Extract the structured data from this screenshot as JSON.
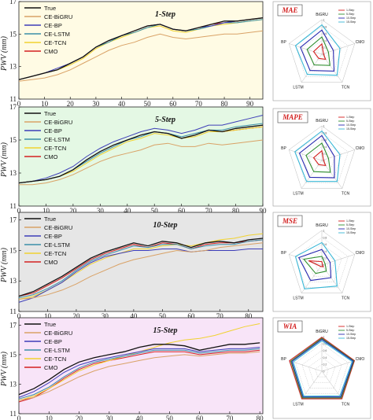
{
  "colors": {
    "True": "#111111",
    "CE-BiGRU": "#d9a266",
    "CE-BP": "#3d3db8",
    "CE-LSTM": "#3a8fa8",
    "CE-TCN": "#f0d230",
    "CMO": "#d42020",
    "panel_bg": [
      "#fffbe4",
      "#e4f8e4",
      "#e6e6e6",
      "#f8e4f8"
    ],
    "radar_1": "#d42020",
    "radar_5": "#2f8f2f",
    "radar_10": "#2a2ab0",
    "radar_15": "#39b7d6"
  },
  "chart_data": [
    {
      "type": "line",
      "title": "1-Step",
      "ylabel": "PWV (mm)",
      "xlim": [
        0,
        95
      ],
      "ylim": [
        11,
        17
      ],
      "xticks": [
        0,
        10,
        20,
        30,
        40,
        50,
        60,
        70,
        80,
        90
      ],
      "yticks": [
        11,
        13,
        15,
        17
      ],
      "legend": [
        "True",
        "CE-BiGRU",
        "CE-BP",
        "CE-LSTM",
        "CE-TCN",
        "CMO"
      ],
      "x": [
        0,
        5,
        10,
        15,
        20,
        25,
        30,
        35,
        40,
        45,
        50,
        55,
        60,
        65,
        70,
        75,
        80,
        85,
        90,
        95
      ],
      "series": [
        {
          "name": "True",
          "values": [
            12.2,
            12.4,
            12.6,
            12.8,
            13.2,
            13.6,
            14.2,
            14.6,
            14.9,
            15.2,
            15.5,
            15.6,
            15.3,
            15.2,
            15.4,
            15.6,
            15.8,
            15.8,
            15.9,
            16.0
          ]
        },
        {
          "name": "CE-BiGRU",
          "values": [
            12.1,
            12.2,
            12.3,
            12.5,
            12.8,
            13.2,
            13.6,
            14.0,
            14.3,
            14.5,
            14.8,
            15.0,
            14.8,
            14.7,
            14.8,
            14.9,
            15.0,
            15.0,
            15.1,
            15.2
          ]
        },
        {
          "name": "CE-BP",
          "values": [
            12.2,
            12.4,
            12.6,
            12.9,
            13.2,
            13.6,
            14.2,
            14.6,
            14.9,
            15.2,
            15.5,
            15.6,
            15.3,
            15.2,
            15.4,
            15.5,
            15.7,
            15.8,
            15.9,
            16.0
          ]
        },
        {
          "name": "CE-LSTM",
          "values": [
            12.2,
            12.4,
            12.6,
            12.8,
            13.2,
            13.6,
            14.2,
            14.5,
            14.9,
            15.1,
            15.4,
            15.6,
            15.3,
            15.2,
            15.3,
            15.5,
            15.7,
            15.7,
            15.8,
            15.9
          ]
        },
        {
          "name": "CE-TCN",
          "values": [
            12.2,
            12.4,
            12.6,
            12.8,
            13.1,
            13.5,
            14.1,
            14.5,
            14.8,
            15.1,
            15.4,
            15.5,
            15.2,
            15.1,
            15.3,
            15.5,
            15.6,
            15.7,
            15.8,
            15.9
          ]
        },
        {
          "name": "CMO",
          "values": [
            12.2,
            12.4,
            12.6,
            12.8,
            13.2,
            13.6,
            14.2,
            14.6,
            14.9,
            15.2,
            15.5,
            15.6,
            15.3,
            15.2,
            15.4,
            15.6,
            15.7,
            15.8,
            15.9,
            16.0
          ]
        }
      ]
    },
    {
      "type": "line",
      "title": "5-Step",
      "ylabel": "PWV (mm)",
      "xlim": [
        0,
        90
      ],
      "ylim": [
        11,
        17
      ],
      "xticks": [
        0,
        10,
        20,
        30,
        40,
        50,
        60,
        70,
        80,
        90
      ],
      "yticks": [
        11,
        13,
        15,
        17
      ],
      "legend": [
        "True",
        "CE-BiGRU",
        "CE-BP",
        "CE-LSTM",
        "CE-TCN",
        "CMO"
      ],
      "x": [
        0,
        5,
        10,
        15,
        20,
        25,
        30,
        35,
        40,
        45,
        50,
        55,
        60,
        65,
        70,
        75,
        80,
        85,
        90
      ],
      "series": [
        {
          "name": "True",
          "values": [
            12.4,
            12.5,
            12.6,
            12.8,
            13.2,
            13.8,
            14.3,
            14.7,
            15.0,
            15.3,
            15.5,
            15.4,
            15.1,
            15.3,
            15.6,
            15.5,
            15.7,
            15.8,
            15.9
          ]
        },
        {
          "name": "CE-BiGRU",
          "values": [
            12.3,
            12.3,
            12.4,
            12.6,
            12.9,
            13.3,
            13.7,
            14.0,
            14.2,
            14.4,
            14.7,
            14.8,
            14.6,
            14.6,
            14.8,
            14.7,
            14.8,
            14.9,
            15.0
          ]
        },
        {
          "name": "CE-BP",
          "values": [
            12.4,
            12.5,
            12.7,
            13.0,
            13.4,
            14.0,
            14.5,
            14.9,
            15.2,
            15.5,
            15.7,
            15.6,
            15.4,
            15.6,
            15.9,
            15.9,
            16.1,
            16.3,
            16.5
          ]
        },
        {
          "name": "CE-LSTM",
          "values": [
            12.4,
            12.5,
            12.6,
            12.8,
            13.2,
            13.7,
            14.2,
            14.6,
            15.0,
            15.2,
            15.5,
            15.4,
            15.2,
            15.4,
            15.6,
            15.6,
            15.8,
            15.9,
            16.0
          ]
        },
        {
          "name": "CE-TCN",
          "values": [
            12.4,
            12.5,
            12.6,
            12.8,
            13.1,
            13.6,
            14.1,
            14.5,
            14.9,
            15.1,
            15.4,
            15.3,
            15.1,
            15.2,
            15.5,
            15.5,
            15.6,
            15.7,
            15.8
          ]
        },
        {
          "name": "CMO",
          "values": [
            12.4,
            12.5,
            12.6,
            12.8,
            13.2,
            13.8,
            14.3,
            14.7,
            15.0,
            15.3,
            15.5,
            15.4,
            15.1,
            15.3,
            15.6,
            15.5,
            15.6,
            15.7,
            15.8
          ]
        }
      ]
    },
    {
      "type": "line",
      "title": "10-Step",
      "ylabel": "PWV (mm)",
      "xlim": [
        0,
        85
      ],
      "ylim": [
        11,
        17.5
      ],
      "xticks": [
        0,
        10,
        20,
        30,
        40,
        50,
        60,
        70,
        80
      ],
      "yticks": [
        11,
        13,
        15,
        17
      ],
      "legend": [
        "True",
        "CE-BiGRU",
        "CE-BP",
        "CE-LSTM",
        "CE-TCN",
        "CMO"
      ],
      "x": [
        0,
        5,
        10,
        15,
        20,
        25,
        30,
        35,
        40,
        45,
        50,
        55,
        60,
        65,
        70,
        75,
        80,
        85
      ],
      "series": [
        {
          "name": "True",
          "values": [
            12.0,
            12.3,
            12.8,
            13.3,
            13.9,
            14.5,
            14.9,
            15.2,
            15.5,
            15.3,
            15.6,
            15.5,
            15.2,
            15.5,
            15.6,
            15.5,
            15.7,
            15.8
          ]
        },
        {
          "name": "CE-BiGRU",
          "values": [
            11.8,
            11.9,
            12.1,
            12.4,
            12.8,
            13.3,
            13.7,
            14.1,
            14.4,
            14.6,
            14.8,
            15.0,
            14.9,
            15.0,
            15.2,
            15.3,
            15.4,
            15.5
          ]
        },
        {
          "name": "CE-BP",
          "values": [
            11.6,
            11.9,
            12.4,
            12.9,
            13.6,
            14.2,
            14.6,
            14.8,
            15.0,
            15.0,
            15.1,
            15.1,
            14.9,
            15.0,
            15.0,
            15.0,
            15.1,
            15.1
          ]
        },
        {
          "name": "CE-LSTM",
          "values": [
            11.9,
            12.1,
            12.5,
            13.0,
            13.7,
            14.3,
            14.7,
            15.0,
            15.3,
            15.2,
            15.4,
            15.4,
            15.1,
            15.3,
            15.4,
            15.4,
            15.6,
            15.7
          ]
        },
        {
          "name": "CE-TCN",
          "values": [
            11.8,
            12.0,
            12.4,
            12.9,
            13.5,
            14.1,
            14.5,
            14.8,
            15.1,
            15.1,
            15.3,
            15.4,
            15.3,
            15.5,
            15.7,
            15.8,
            16.0,
            16.1
          ]
        },
        {
          "name": "CMO",
          "values": [
            12.0,
            12.2,
            12.7,
            13.2,
            13.8,
            14.4,
            14.8,
            15.1,
            15.4,
            15.2,
            15.5,
            15.4,
            15.1,
            15.4,
            15.5,
            15.5,
            15.6,
            15.7
          ]
        }
      ]
    },
    {
      "type": "line",
      "title": "15-Step",
      "ylabel": "PWV (mm)",
      "xlim": [
        0,
        81
      ],
      "ylim": [
        11,
        17.5
      ],
      "xticks": [
        0,
        10,
        20,
        30,
        40,
        50,
        60,
        70,
        80
      ],
      "yticks": [
        11,
        13,
        15,
        17
      ],
      "legend": [
        "True",
        "CE-BiGRU",
        "CE-BP",
        "CE-LSTM",
        "CE-TCN",
        "CMO"
      ],
      "x": [
        0,
        5,
        10,
        15,
        20,
        25,
        30,
        35,
        40,
        45,
        50,
        55,
        60,
        65,
        70,
        75,
        80
      ],
      "series": [
        {
          "name": "True",
          "values": [
            12.3,
            12.7,
            13.3,
            14.0,
            14.5,
            14.8,
            15.0,
            15.2,
            15.5,
            15.7,
            15.7,
            15.6,
            15.3,
            15.5,
            15.7,
            15.7,
            15.8
          ]
        },
        {
          "name": "CE-BiGRU",
          "values": [
            11.9,
            12.1,
            12.5,
            13.0,
            13.5,
            13.9,
            14.2,
            14.4,
            14.6,
            14.8,
            14.9,
            15.0,
            14.9,
            15.0,
            15.1,
            15.1,
            15.2
          ]
        },
        {
          "name": "CE-BP",
          "values": [
            12.1,
            12.5,
            13.1,
            13.8,
            14.3,
            14.6,
            14.8,
            15.0,
            15.2,
            15.4,
            15.4,
            15.4,
            15.2,
            15.3,
            15.4,
            15.4,
            15.5
          ]
        },
        {
          "name": "CE-LSTM",
          "values": [
            12.0,
            12.3,
            12.8,
            13.5,
            14.1,
            14.5,
            14.7,
            14.9,
            15.1,
            15.3,
            15.3,
            15.3,
            15.1,
            15.2,
            15.3,
            15.3,
            15.4
          ]
        },
        {
          "name": "CE-TCN",
          "values": [
            11.9,
            12.2,
            12.7,
            13.3,
            13.9,
            14.3,
            14.6,
            14.9,
            15.2,
            15.5,
            15.8,
            16.0,
            16.1,
            16.3,
            16.6,
            16.9,
            17.1
          ]
        },
        {
          "name": "CMO",
          "values": [
            11.8,
            12.1,
            12.7,
            13.4,
            14.0,
            14.4,
            14.6,
            14.8,
            15.0,
            15.2,
            15.2,
            15.2,
            15.0,
            15.1,
            15.2,
            15.2,
            15.3
          ]
        }
      ]
    },
    {
      "type": "radar",
      "title": "MAE",
      "axes": [
        "BiGRU",
        "CMO",
        "TCN",
        "LSTM",
        "BP"
      ],
      "rticks": [
        "0",
        "0.2",
        "0.4",
        "0.6",
        "0.8",
        "1"
      ],
      "rmax": 1,
      "legend_position": "top-right",
      "series": [
        {
          "name": "1-Step",
          "values": [
            0.3,
            0.05,
            0.18,
            0.15,
            0.25
          ]
        },
        {
          "name": "5-Step",
          "values": [
            0.5,
            0.2,
            0.4,
            0.38,
            0.45
          ]
        },
        {
          "name": "10-Step",
          "values": [
            0.7,
            0.35,
            0.6,
            0.58,
            0.65
          ]
        },
        {
          "name": "15-Step",
          "values": [
            0.85,
            0.55,
            0.75,
            0.72,
            0.8
          ]
        }
      ]
    },
    {
      "type": "radar",
      "title": "MAPE",
      "axes": [
        "BiGRU",
        "CMO",
        "TCN",
        "LSTM",
        "BP"
      ],
      "rticks": [
        "0",
        "0.2",
        "0.4",
        "0.6",
        "0.8",
        "1"
      ],
      "rmax": 1,
      "legend_position": "top-right",
      "series": [
        {
          "name": "1-Step",
          "values": [
            0.28,
            0.05,
            0.18,
            0.15,
            0.25
          ]
        },
        {
          "name": "5-Step",
          "values": [
            0.5,
            0.2,
            0.42,
            0.4,
            0.48
          ]
        },
        {
          "name": "10-Step",
          "values": [
            0.72,
            0.38,
            0.62,
            0.6,
            0.68
          ]
        },
        {
          "name": "15-Step",
          "values": [
            0.85,
            0.55,
            0.75,
            0.75,
            0.82
          ]
        }
      ]
    },
    {
      "type": "radar",
      "title": "MSE",
      "axes": [
        "BiGRU",
        "CMO",
        "TCN",
        "LSTM",
        "BP"
      ],
      "rticks": [
        "0",
        "0.2",
        "0.4",
        "0.6",
        "0.8",
        "1"
      ],
      "rmax": 1,
      "legend_position": "top-right",
      "series": [
        {
          "name": "1-Step",
          "values": [
            0.1,
            0.02,
            0.06,
            0.05,
            0.4
          ]
        },
        {
          "name": "5-Step",
          "values": [
            0.25,
            0.1,
            0.22,
            0.3,
            0.55
          ]
        },
        {
          "name": "10-Step",
          "values": [
            0.45,
            0.25,
            0.45,
            0.55,
            0.7
          ]
        },
        {
          "name": "15-Step",
          "values": [
            0.65,
            0.4,
            0.75,
            0.85,
            0.8
          ]
        }
      ]
    },
    {
      "type": "radar",
      "title": "WIA",
      "axes": [
        "BiGRU",
        "CMO",
        "TCN",
        "LSTM",
        "BP"
      ],
      "rticks": [
        "0",
        "0.2",
        "0.4",
        "0.6",
        "0.8",
        "1"
      ],
      "rmax": 1,
      "legend_position": "top-right",
      "series": [
        {
          "name": "1-Step",
          "values": [
            0.98,
            0.99,
            0.98,
            0.98,
            0.98
          ]
        },
        {
          "name": "5-Step",
          "values": [
            0.95,
            0.97,
            0.95,
            0.95,
            0.94
          ]
        },
        {
          "name": "10-Step",
          "values": [
            0.92,
            0.95,
            0.92,
            0.92,
            0.91
          ]
        },
        {
          "name": "15-Step",
          "values": [
            0.88,
            0.92,
            0.88,
            0.89,
            0.87
          ]
        }
      ]
    }
  ]
}
